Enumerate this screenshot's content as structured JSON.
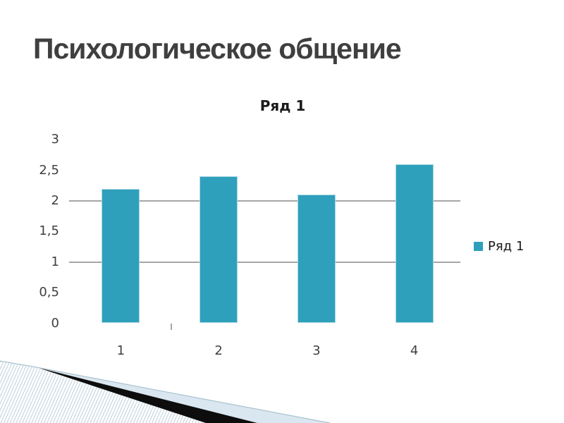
{
  "slide": {
    "title": "Психологическое общение",
    "colors": {
      "title_text": "#3f3f3f",
      "accent_teal": "#2ea0bb",
      "bar_border": "#a9d6e2",
      "gridline": "#a6a6a6",
      "axis_text": "#3f3f3f",
      "chart_title_text": "#1a1a1a",
      "decor_pale_blue": "#dae7f0",
      "decor_black": "#0d0d0d",
      "decor_stripe": "#c2d2dd",
      "decor_line": "#a9c2cf"
    }
  },
  "chart_data": {
    "type": "bar",
    "title": "Ряд 1",
    "categories": [
      "1",
      "2",
      "3",
      "4"
    ],
    "series": [
      {
        "name": "Ряд 1",
        "color": "#2ea0bb",
        "values": [
          2.2,
          2.4,
          2.1,
          2.6
        ]
      }
    ],
    "ylim": [
      0,
      3
    ],
    "y_ticks": [
      {
        "label": "0",
        "value": 0
      },
      {
        "label": "0,5",
        "value": 0.5
      },
      {
        "label": "1",
        "value": 1
      },
      {
        "label": "1,5",
        "value": 1.5
      },
      {
        "label": "2",
        "value": 2
      },
      {
        "label": "2,5",
        "value": 2.5
      },
      {
        "label": "3",
        "value": 3
      }
    ],
    "gridlines_at": [
      1,
      2
    ],
    "grid": "horizontal-partial",
    "legend": {
      "label": "Ряд 1",
      "position": "right"
    }
  }
}
